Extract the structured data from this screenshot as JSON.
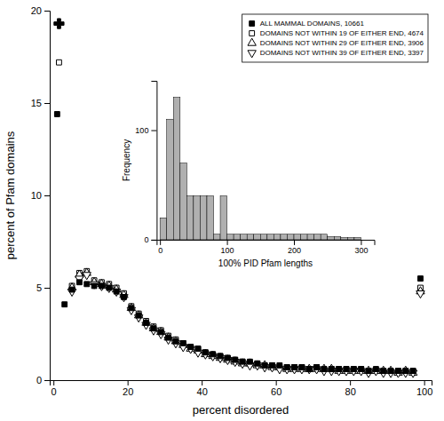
{
  "chart_data": [
    {
      "type": "scatter",
      "xlabel": "percent disordered",
      "ylabel": "percent of Pfam domains",
      "x": [
        1,
        3,
        5,
        7,
        9,
        11,
        13,
        15,
        17,
        19,
        21,
        23,
        25,
        27,
        29,
        31,
        33,
        35,
        37,
        39,
        41,
        43,
        45,
        47,
        49,
        51,
        53,
        55,
        57,
        59,
        61,
        63,
        65,
        67,
        69,
        71,
        73,
        75,
        77,
        79,
        81,
        83,
        85,
        87,
        89,
        91,
        93,
        95,
        97,
        99
      ],
      "series": [
        {
          "name": "ALL MAMMAL DOMAINS, 10661",
          "color": "#000000",
          "marker": "square",
          "values": [
            14.4,
            4.1,
            4.9,
            5.3,
            5.2,
            5.1,
            5.1,
            5.0,
            4.8,
            4.5,
            3.9,
            3.5,
            3.1,
            2.8,
            2.6,
            2.3,
            2.1,
            2.0,
            1.8,
            1.7,
            1.5,
            1.4,
            1.3,
            1.2,
            1.1,
            1.0,
            1.0,
            0.9,
            0.8,
            0.8,
            0.8,
            0.7,
            0.7,
            0.7,
            0.6,
            0.7,
            0.6,
            0.6,
            0.6,
            0.6,
            0.6,
            0.6,
            0.5,
            0.6,
            0.5,
            0.5,
            0.5,
            0.5,
            0.5,
            5.5
          ]
        },
        {
          "name": "DOMAINS NOT WITHIN 19 OF EITHER END, 4674",
          "color": "#000000",
          "marker": "square-open",
          "values": [
            null,
            null,
            5.1,
            5.8,
            5.9,
            5.4,
            5.3,
            5.2,
            5.0,
            4.7,
            4.0,
            3.6,
            3.2,
            2.9,
            2.7,
            2.4,
            2.2,
            2.0,
            1.8,
            1.7,
            1.5,
            1.4,
            1.3,
            1.2,
            1.1,
            1.0,
            0.9,
            0.9,
            0.8,
            0.8,
            0.7,
            0.7,
            0.7,
            0.7,
            0.6,
            0.7,
            0.6,
            0.6,
            0.6,
            0.6,
            0.6,
            0.6,
            0.5,
            0.5,
            0.5,
            0.5,
            0.5,
            0.5,
            0.5,
            5.0
          ]
        },
        {
          "name": "DOMAINS NOT WITHIN 29 OF EITHER END, 3906",
          "color": "#000000",
          "marker": "triangle-up-open",
          "values": [
            null,
            null,
            5.0,
            5.7,
            5.8,
            5.3,
            5.2,
            5.1,
            4.9,
            4.6,
            3.9,
            3.5,
            3.1,
            2.8,
            2.6,
            2.3,
            2.1,
            1.9,
            1.7,
            1.6,
            1.4,
            1.3,
            1.2,
            1.1,
            1.0,
            0.9,
            0.9,
            0.8,
            0.8,
            0.7,
            0.7,
            0.6,
            0.6,
            0.6,
            0.6,
            0.6,
            0.6,
            0.6,
            0.5,
            0.5,
            0.5,
            0.5,
            0.5,
            0.5,
            0.5,
            0.5,
            0.4,
            0.5,
            0.4,
            4.8
          ]
        },
        {
          "name": "DOMAINS NOT WITHIN 39 OF EITHER END, 3397",
          "color": "#000000",
          "marker": "triangle-down-open",
          "values": [
            null,
            null,
            4.8,
            5.5,
            5.7,
            5.2,
            5.1,
            5.0,
            4.8,
            4.5,
            3.8,
            3.4,
            3.0,
            2.7,
            2.5,
            2.2,
            2.0,
            1.8,
            1.7,
            1.5,
            1.4,
            1.3,
            1.2,
            1.1,
            1.0,
            0.9,
            0.8,
            0.8,
            0.7,
            0.7,
            0.6,
            0.6,
            0.6,
            0.6,
            0.6,
            0.6,
            0.5,
            0.5,
            0.5,
            0.5,
            0.5,
            0.5,
            0.4,
            0.5,
            0.4,
            0.4,
            0.4,
            0.4,
            0.4,
            4.7
          ]
        }
      ],
      "extra_points": [
        {
          "x": 1.5,
          "y": 19.3,
          "marker": "plus",
          "color": "#000000"
        },
        {
          "x": 1.5,
          "y": 17.2,
          "marker": "square-open",
          "color": "#000000"
        }
      ],
      "xlim": [
        -1,
        102
      ],
      "ylim": [
        0,
        20
      ],
      "xticks": [
        0,
        20,
        40,
        60,
        80,
        100
      ],
      "yticks": [
        0,
        5,
        10,
        15,
        20
      ],
      "legend": "upper right"
    },
    {
      "type": "histogram",
      "xlabel": "100% PID Pfam lengths",
      "ylabel": "Frequency",
      "bins": [
        0,
        10,
        20,
        30,
        40,
        50,
        60,
        70,
        80,
        90,
        100,
        110,
        120,
        130,
        140,
        150,
        160,
        170,
        180,
        190,
        200,
        210,
        220,
        230,
        240,
        250,
        260,
        270,
        280,
        290,
        300
      ],
      "counts": [
        20,
        110,
        130,
        70,
        40,
        40,
        40,
        40,
        5,
        40,
        5,
        5,
        5,
        5,
        5,
        5,
        5,
        5,
        5,
        5,
        5,
        5,
        5,
        5,
        5,
        3,
        3,
        2,
        2,
        2
      ],
      "color": "#b0b0b0",
      "xlim": [
        -5,
        320
      ],
      "ylim": [
        0,
        145
      ],
      "xticks": [
        0,
        100,
        200,
        300
      ],
      "yticks": [
        0,
        100
      ]
    }
  ]
}
